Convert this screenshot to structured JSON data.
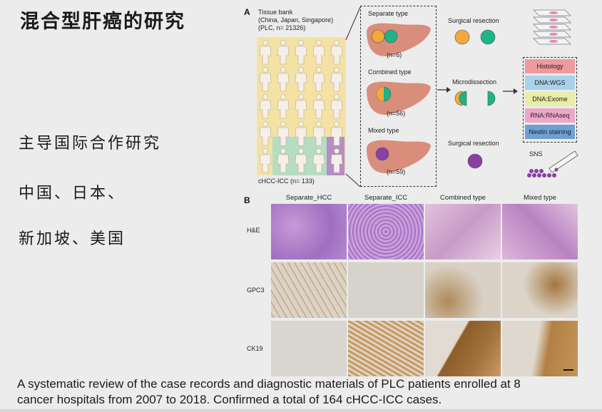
{
  "slide": {
    "title": "混合型肝癌的研究",
    "bullets": [
      "主导国际合作研究",
      "中国、日本、",
      "新加坡、美国"
    ],
    "caption_line1": "A systematic review of the case records and diagnostic materials of PLC patients enrolled at 8",
    "caption_line2": "cancer hospitals from 2007 to 2018. Confirmed a total of 164 cHCC-ICC cases."
  },
  "figure": {
    "panel_a": {
      "label": "A",
      "bank_title": "Tissue bank",
      "bank_origin": "(China, Japan, Singapore)",
      "bank_count": "(PLC, n= 21326)",
      "chcc_count": "cHCC-ICC (n= 133)",
      "types": [
        {
          "name": "Separate type",
          "n": "(n=6)"
        },
        {
          "name": "Combined type",
          "n": "(n=56)"
        },
        {
          "name": "Mixed type",
          "n": "(n=59)"
        }
      ],
      "methods": [
        "Surgical resection",
        "Microdissection",
        "Surgical resection"
      ],
      "assays": [
        {
          "label": "Histology",
          "color": "#ee9aa0"
        },
        {
          "label": "DNA:WGS",
          "color": "#a9d2ea"
        },
        {
          "label": "DNA:Exome",
          "color": "#e8eda8"
        },
        {
          "label": "RNA:RNAseq",
          "color": "#eda6c8"
        },
        {
          "label": "Nestin staining",
          "color": "#6f9fd4"
        }
      ],
      "sns_label": "SNS",
      "colors": {
        "hcc": "#f0a93a",
        "icc": "#1db487",
        "mixed": "#8a3fa3",
        "liver": "#d98e7c"
      }
    },
    "panel_b": {
      "label": "B",
      "columns": [
        "Separate_HCC",
        "Separate_ICC",
        "Combined type",
        "Mixed type"
      ],
      "rows": [
        "H&E",
        "GPC3",
        "CK19"
      ]
    }
  }
}
